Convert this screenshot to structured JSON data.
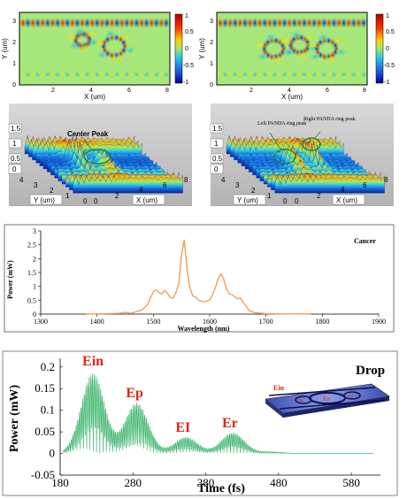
{
  "figure": {
    "panel_a": {
      "x_label": "X (um)",
      "y_label": "Y (um)",
      "x_ticks": [
        "2",
        "4",
        "6",
        "8"
      ],
      "y_ticks": [
        "0",
        "1",
        "2",
        "3"
      ],
      "colorbar_ticks": [
        "1",
        "0.5",
        "0",
        "-0.5",
        "-1"
      ]
    },
    "panel_b": {
      "x_label": "X (um)",
      "y_label": "Y (um)",
      "x_ticks": [
        "2",
        "4",
        "6",
        "8"
      ],
      "y_ticks": [
        "0",
        "1",
        "2",
        "3"
      ],
      "colorbar_ticks": [
        "1",
        "0.5",
        "0",
        "-0.5",
        "-1"
      ]
    },
    "panel_c": {
      "z_ticks": [
        "1.5",
        "1",
        "0.5",
        "0"
      ],
      "y_axis_ticks": [
        "4",
        "3",
        "2",
        "1",
        "0"
      ],
      "x_axis_ticks": [
        "0",
        "2",
        "4",
        "6",
        "8"
      ],
      "y_label": "Y (um)",
      "x_label": "X (um)",
      "annotation": "Center Peak"
    },
    "panel_d": {
      "z_ticks": [
        "1.5",
        "1",
        "0.5",
        "0"
      ],
      "y_axis_ticks": [
        "4",
        "3",
        "2",
        "1",
        "0"
      ],
      "x_axis_ticks": [
        "0",
        "2",
        "4",
        "6",
        "8"
      ],
      "y_label": "Y (um)",
      "x_label": "X (um)",
      "annotation_left": "Left PANDA ring peak",
      "annotation_right": "Right PANDA ring peak"
    }
  },
  "chart_data": [
    {
      "type": "line",
      "title": "Cancer",
      "xlabel": "Wavelength (nm)",
      "ylabel": "Power (mW)",
      "xlim": [
        1300,
        1900
      ],
      "ylim": [
        0,
        3
      ],
      "x_ticks": [
        1300,
        1400,
        1500,
        1600,
        1700,
        1800,
        1900
      ],
      "y_ticks": [
        0,
        0.5,
        1,
        1.5,
        2,
        2.5,
        3
      ],
      "color": "#f2a05a",
      "series": [
        {
          "x": [
            1380,
            1400,
            1420,
            1440,
            1450,
            1460,
            1480,
            1490,
            1495,
            1500,
            1505,
            1510,
            1515,
            1520,
            1525,
            1530,
            1535,
            1540,
            1545,
            1550,
            1555,
            1560,
            1565,
            1570,
            1575,
            1580,
            1590,
            1600,
            1605,
            1610,
            1615,
            1620,
            1625,
            1630,
            1635,
            1640,
            1645,
            1650,
            1655,
            1660,
            1665,
            1670,
            1680,
            1700,
            1720,
            1740,
            1760,
            1780
          ],
          "y": [
            0,
            0.01,
            0.02,
            0.03,
            0.06,
            0.03,
            0.15,
            0.35,
            0.6,
            0.8,
            0.88,
            0.78,
            0.72,
            0.85,
            0.75,
            0.6,
            0.58,
            0.78,
            1.1,
            2.15,
            2.68,
            1.6,
            0.95,
            0.65,
            0.62,
            0.5,
            0.45,
            0.5,
            0.7,
            0.95,
            1.28,
            1.45,
            1.25,
            0.9,
            0.72,
            0.7,
            0.62,
            0.55,
            0.58,
            0.4,
            0.28,
            0.12,
            0.05,
            0.02,
            0.01,
            0.005,
            0.01,
            0
          ]
        }
      ]
    },
    {
      "type": "area",
      "title": "Drop",
      "xlabel": "Time (fs)",
      "ylabel": "Power (mW)",
      "xlim": [
        180,
        620
      ],
      "ylim": [
        -0.05,
        0.22
      ],
      "x_ticks": [
        180,
        280,
        380,
        480,
        580
      ],
      "y_ticks": [
        -0.05,
        0,
        0.05,
        0.1,
        0.15,
        0.2
      ],
      "color": "#3db56b",
      "label_color": "#e0241b",
      "peaks": [
        {
          "label": "Ein",
          "center": 225,
          "amplitude": 0.187
        },
        {
          "label": "Ep",
          "center": 285,
          "amplitude": 0.118
        },
        {
          "label": "EI",
          "center": 353,
          "amplitude": 0.038
        },
        {
          "label": "Er",
          "center": 417,
          "amplitude": 0.048
        },
        {
          "label": "",
          "center": 470,
          "amplitude": 0.004
        }
      ],
      "inset_labels": [
        "Ein",
        "Er",
        "Ep",
        "Er"
      ]
    }
  ]
}
